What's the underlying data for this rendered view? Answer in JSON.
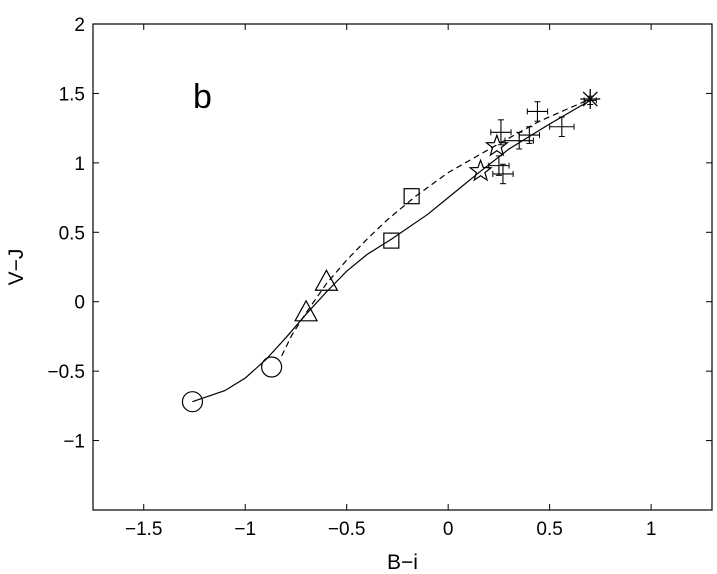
{
  "chart_data": {
    "type": "line",
    "panel_label": "b",
    "xlabel": "B−i",
    "ylabel": "V−J",
    "xlim": [
      -1.75,
      1.3
    ],
    "ylim": [
      -1.5,
      2.0
    ],
    "xticks": [
      -1.5,
      -1,
      -0.5,
      0,
      0.5,
      1
    ],
    "xtick_labels": [
      "−1.5",
      "−1",
      "−0.5",
      "0",
      "0.5",
      "1"
    ],
    "yticks": [
      -1,
      -0.5,
      0,
      0.5,
      1,
      1.5,
      2
    ],
    "ytick_labels": [
      "−1",
      "−0.5",
      "0",
      "0.5",
      "1",
      "1.5",
      "2"
    ],
    "grid": false,
    "series": [
      {
        "style": "solid",
        "color": "#000000",
        "x": [
          -1.26,
          -1.1,
          -1.0,
          -0.9,
          -0.8,
          -0.7,
          -0.6,
          -0.5,
          -0.4,
          -0.28,
          -0.1,
          0.0,
          0.16,
          0.3,
          0.5,
          0.7
        ],
        "y": [
          -0.72,
          -0.64,
          -0.55,
          -0.42,
          -0.26,
          -0.09,
          0.07,
          0.22,
          0.34,
          0.45,
          0.63,
          0.75,
          0.94,
          1.1,
          1.28,
          1.45
        ]
      },
      {
        "style": "dashed",
        "color": "#000000",
        "x": [
          -0.82,
          -0.77,
          -0.7,
          -0.6,
          -0.5,
          -0.4,
          -0.3,
          -0.16,
          0.0,
          0.24,
          0.45,
          0.7
        ],
        "y": [
          -0.39,
          -0.24,
          -0.08,
          0.13,
          0.3,
          0.45,
          0.59,
          0.76,
          0.93,
          1.13,
          1.3,
          1.46
        ]
      }
    ],
    "markers": [
      {
        "symbol": "circle",
        "x": -1.26,
        "y": -0.72
      },
      {
        "symbol": "circle",
        "x": -0.87,
        "y": -0.47
      },
      {
        "symbol": "triangle",
        "x": -0.7,
        "y": -0.08
      },
      {
        "symbol": "triangle",
        "x": -0.6,
        "y": 0.14
      },
      {
        "symbol": "square",
        "x": -0.28,
        "y": 0.44
      },
      {
        "symbol": "square",
        "x": -0.18,
        "y": 0.76
      },
      {
        "symbol": "star",
        "x": 0.16,
        "y": 0.94
      },
      {
        "symbol": "star",
        "x": 0.24,
        "y": 1.12
      },
      {
        "symbol": "asterisk",
        "x": 0.7,
        "y": 1.46
      }
    ],
    "data_points": [
      {
        "x": 0.26,
        "y": 1.22,
        "xerr": 0.05,
        "yerr": 0.09
      },
      {
        "x": 0.27,
        "y": 0.92,
        "xerr": 0.05,
        "yerr": 0.07
      },
      {
        "x": 0.25,
        "y": 0.98,
        "xerr": 0.05,
        "yerr": 0.07
      },
      {
        "x": 0.35,
        "y": 1.16,
        "xerr": 0.07,
        "yerr": 0.06
      },
      {
        "x": 0.4,
        "y": 1.2,
        "xerr": 0.05,
        "yerr": 0.06
      },
      {
        "x": 0.44,
        "y": 1.37,
        "xerr": 0.05,
        "yerr": 0.07
      },
      {
        "x": 0.56,
        "y": 1.26,
        "xerr": 0.06,
        "yerr": 0.07
      },
      {
        "x": 0.7,
        "y": 1.45,
        "xerr": 0.03,
        "yerr": 0.03
      }
    ]
  }
}
